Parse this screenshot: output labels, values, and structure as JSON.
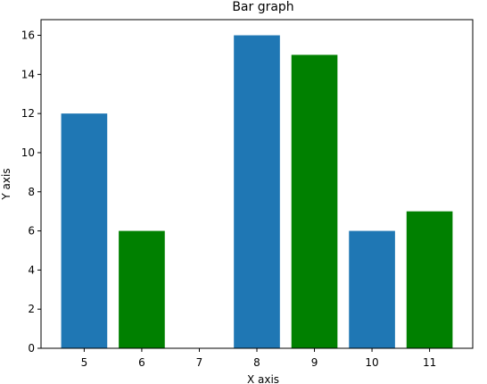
{
  "chart_data": {
    "type": "bar",
    "title": "Bar graph",
    "xlabel": "X axis",
    "ylabel": "Y axis",
    "categories": [
      "5",
      "6",
      "7",
      "8",
      "9",
      "10",
      "11"
    ],
    "series": [
      {
        "x": [
          5,
          8,
          10
        ],
        "values": [
          12,
          16,
          6
        ],
        "color": "#1f77b4"
      },
      {
        "x": [
          6,
          9,
          11
        ],
        "values": [
          6,
          15,
          7
        ],
        "color": "#008000"
      }
    ],
    "x_ticks": [
      5,
      6,
      7,
      8,
      9,
      10,
      11
    ],
    "xlim": [
      4.25,
      11.75
    ],
    "y_ticks": [
      0,
      2,
      4,
      6,
      8,
      10,
      12,
      14,
      16
    ],
    "ylim": [
      0,
      16.8
    ],
    "grid": false,
    "legend": "none"
  }
}
